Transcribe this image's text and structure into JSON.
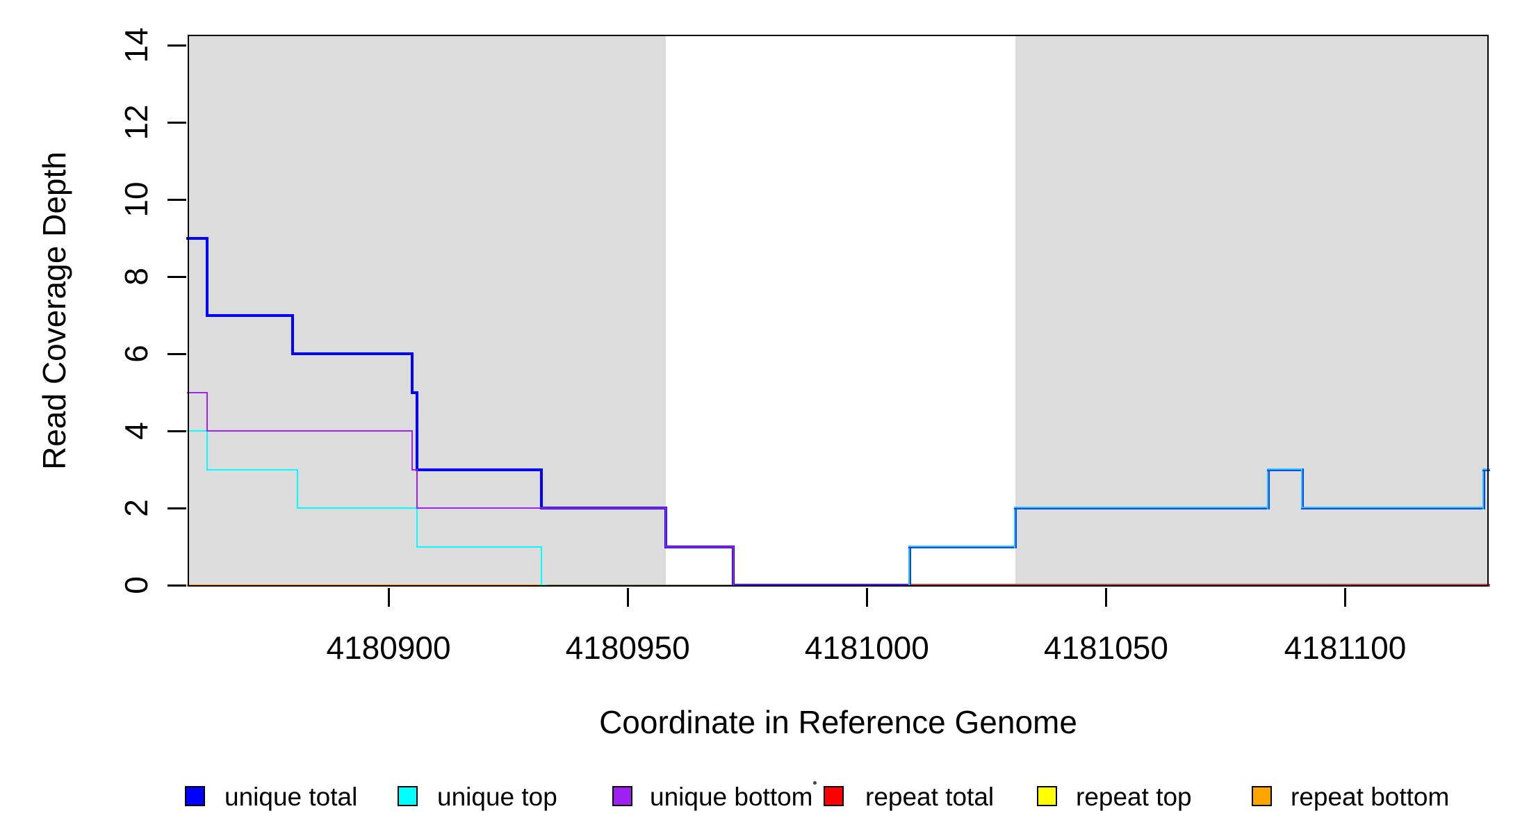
{
  "figure": {
    "background": "#ffffff",
    "shade_color": "#dcdcdc"
  },
  "axes": {
    "x": {
      "title": "Coordinate in Reference Genome",
      "ticks": [
        4180900,
        4180950,
        4181000,
        4181050,
        4181100
      ],
      "range": [
        4180858,
        4181130
      ]
    },
    "y": {
      "title": "Read Coverage Depth",
      "ticks": [
        0,
        2,
        4,
        6,
        8,
        10,
        12,
        14
      ],
      "range": [
        0,
        14
      ]
    }
  },
  "legend": {
    "title": ".",
    "items": [
      {
        "label": "unique total",
        "color": "#0000FF"
      },
      {
        "label": "unique top",
        "color": "#00FFFF"
      },
      {
        "label": "unique bottom",
        "color": "#A020F0"
      },
      {
        "label": "repeat total",
        "color": "#FF0000"
      },
      {
        "label": "repeat top",
        "color": "#FFFF00"
      },
      {
        "label": "repeat bottom",
        "color": "#FFA500"
      }
    ]
  },
  "chart_data": {
    "type": "line",
    "subtype": "step-after",
    "title": "",
    "xlabel": "Coordinate in Reference Genome",
    "ylabel": "Read Coverage Depth",
    "xlim": [
      4180858,
      4181130
    ],
    "ylim": [
      0,
      14
    ],
    "grid": false,
    "legend_position": "bottom",
    "shaded_regions": [
      [
        4180858,
        4180958
      ],
      [
        4181031,
        4181130
      ]
    ],
    "series": [
      {
        "name": "unique total",
        "color": "#0000FF",
        "steps": [
          [
            4180858,
            9
          ],
          [
            4180862,
            7
          ],
          [
            4180880,
            6
          ],
          [
            4180905,
            5
          ],
          [
            4180906,
            3
          ],
          [
            4180932,
            2
          ],
          [
            4180958,
            1
          ],
          [
            4180972,
            0
          ],
          [
            4181009,
            1
          ],
          [
            4181031,
            2
          ],
          [
            4181084,
            3
          ],
          [
            4181091,
            2
          ],
          [
            4181129,
            3
          ],
          [
            4181130,
            3
          ]
        ]
      },
      {
        "name": "unique top",
        "color": "#00FFFF",
        "steps": [
          [
            4180858,
            4
          ],
          [
            4180862,
            3
          ],
          [
            4180881,
            2
          ],
          [
            4180906,
            1
          ],
          [
            4180932,
            0
          ],
          [
            4181130,
            0
          ]
        ]
      },
      {
        "name": "unique bottom",
        "color": "#A020F0",
        "steps": [
          [
            4180858,
            5
          ],
          [
            4180862,
            4
          ],
          [
            4180905,
            3
          ],
          [
            4180906,
            2
          ],
          [
            4180958,
            1
          ],
          [
            4180972,
            0
          ],
          [
            4181130,
            0
          ]
        ]
      },
      {
        "name": "repeat total",
        "color": "#FF0000",
        "steps": [
          [
            4180858,
            0
          ],
          [
            4181130,
            0
          ]
        ]
      },
      {
        "name": "repeat top",
        "color": "#FFFF00",
        "steps": [
          [
            4180858,
            0
          ],
          [
            4181130,
            0
          ]
        ]
      },
      {
        "name": "repeat bottom",
        "color": "#FFA500",
        "steps": [
          [
            4180858,
            0
          ],
          [
            4181130,
            0
          ]
        ]
      }
    ],
    "render_lines": [
      {
        "name": "zero-line-orange",
        "color": "#f59300",
        "width": 3,
        "pts": [
          [
            4180858,
            0
          ],
          [
            4180932,
            0
          ]
        ]
      },
      {
        "name": "zero-line-olive",
        "color": "#8f9e5a",
        "width": 3,
        "pts": [
          [
            4180932,
            0
          ],
          [
            4180972,
            0
          ]
        ]
      },
      {
        "name": "zero-line-red",
        "color": "#c14949",
        "width": 4,
        "pts": [
          [
            4181009,
            0
          ],
          [
            4181130,
            0
          ]
        ]
      },
      {
        "name": "unique-total-left",
        "color": "#0000ff",
        "width": 4,
        "pts": [
          [
            4180858,
            9
          ],
          [
            4180862,
            7
          ],
          [
            4180880,
            6
          ],
          [
            4180905,
            5
          ],
          [
            4180906,
            3
          ],
          [
            4180932,
            2
          ],
          [
            4180958,
            1
          ],
          [
            4180972,
            0
          ],
          [
            4181009,
            0
          ]
        ]
      },
      {
        "name": "unique-top-left",
        "color": "#00ffff",
        "width": 2,
        "pts": [
          [
            4180858,
            4
          ],
          [
            4180862,
            3
          ],
          [
            4180881,
            2
          ],
          [
            4180906,
            1
          ],
          [
            4180932,
            0
          ],
          [
            4180933,
            0
          ]
        ]
      },
      {
        "name": "unique-bottom-left",
        "color": "#a020f0",
        "width": 2,
        "pts": [
          [
            4180858,
            5
          ],
          [
            4180862,
            4
          ],
          [
            4180905,
            3
          ],
          [
            4180906,
            2
          ],
          [
            4180958,
            1
          ],
          [
            4180972,
            0
          ],
          [
            4181009,
            0
          ]
        ]
      },
      {
        "name": "unique-total-right",
        "color": "lightblue-gradient",
        "width": 4,
        "pts": [
          [
            4181009,
            0
          ],
          [
            4181009,
            1
          ],
          [
            4181031,
            2
          ],
          [
            4181084,
            3
          ],
          [
            4181091,
            2
          ],
          [
            4181129,
            3
          ],
          [
            4181130,
            3
          ]
        ]
      }
    ]
  }
}
